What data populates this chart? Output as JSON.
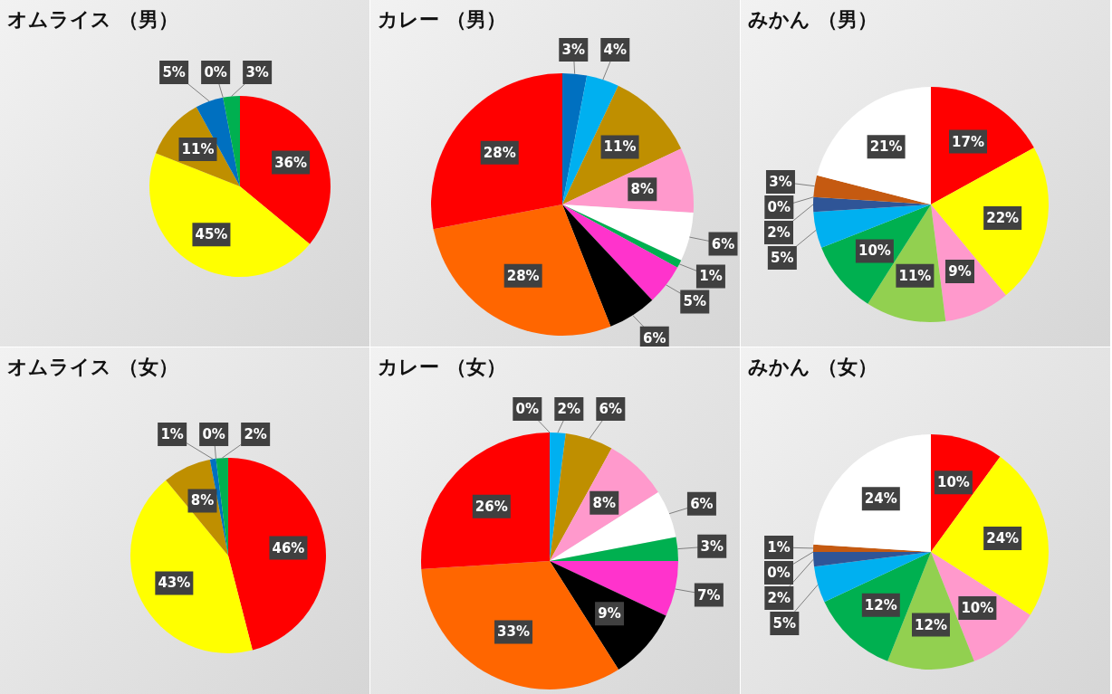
{
  "chart_data": [
    {
      "type": "pie",
      "title": "オムライス （男）",
      "categories": [
        null,
        null,
        null,
        null,
        null,
        null
      ],
      "values": [
        36,
        45,
        11,
        5,
        0,
        3
      ],
      "colors": [
        "#ff0000",
        "#ffff00",
        "#bf8f00",
        "#0070c0",
        "#7030a0",
        "#00b050"
      ],
      "value_labels": [
        "36%",
        "45%",
        "11%",
        "5%",
        "0%",
        "3%"
      ]
    },
    {
      "type": "pie",
      "title": "カレー （男）",
      "categories": [
        null,
        null,
        null,
        null,
        null,
        null,
        null,
        null,
        null,
        null
      ],
      "values": [
        3,
        4,
        11,
        8,
        6,
        1,
        5,
        6,
        28,
        28
      ],
      "colors": [
        "#0070c0",
        "#00b0f0",
        "#bf8f00",
        "#ff99cc",
        "#ffffff",
        "#00b050",
        "#ff33cc",
        "#000000",
        "#ff6600",
        "#ff0000"
      ],
      "value_labels": [
        "3%",
        "4%",
        "11%",
        "8%",
        "6%",
        "1%",
        "5%",
        "6%",
        "28%",
        "28%"
      ]
    },
    {
      "type": "pie",
      "title": "みかん （男）",
      "categories": [
        null,
        null,
        null,
        null,
        null,
        null,
        null,
        null,
        null,
        null
      ],
      "values": [
        17,
        22,
        9,
        11,
        10,
        5,
        2,
        0,
        3,
        21
      ],
      "colors": [
        "#ff0000",
        "#ffff00",
        "#ff99cc",
        "#92d050",
        "#00b050",
        "#00b0f0",
        "#2f5597",
        "#7030a0",
        "#c55a11",
        "#ffffff"
      ],
      "value_labels": [
        "17%",
        "22%",
        "9%",
        "11%",
        "10%",
        "5%",
        "2%",
        "0%",
        "3%",
        "21%"
      ]
    },
    {
      "type": "pie",
      "title": "オムライス （女）",
      "categories": [
        null,
        null,
        null,
        null,
        null,
        null
      ],
      "values": [
        46,
        43,
        8,
        1,
        0,
        2
      ],
      "colors": [
        "#ff0000",
        "#ffff00",
        "#bf8f00",
        "#0070c0",
        "#7030a0",
        "#00b050"
      ],
      "value_labels": [
        "46%",
        "43%",
        "8%",
        "1%",
        "0%",
        "2%"
      ]
    },
    {
      "type": "pie",
      "title": "カレー （女）",
      "categories": [
        null,
        null,
        null,
        null,
        null,
        null,
        null,
        null,
        null,
        null
      ],
      "values": [
        0,
        2,
        6,
        8,
        6,
        3,
        7,
        9,
        33,
        26
      ],
      "colors": [
        "#0070c0",
        "#00b0f0",
        "#bf8f00",
        "#ff99cc",
        "#ffffff",
        "#00b050",
        "#ff33cc",
        "#000000",
        "#ff6600",
        "#ff0000"
      ],
      "value_labels": [
        "0%",
        "2%",
        "6%",
        "8%",
        "6%",
        "3%",
        "7%",
        "9%",
        "33%",
        "26%"
      ]
    },
    {
      "type": "pie",
      "title": "みかん （女）",
      "categories": [
        null,
        null,
        null,
        null,
        null,
        null,
        null,
        null,
        null,
        null
      ],
      "values": [
        10,
        24,
        10,
        12,
        12,
        5,
        2,
        0,
        1,
        24
      ],
      "colors": [
        "#ff0000",
        "#ffff00",
        "#ff99cc",
        "#92d050",
        "#00b050",
        "#00b0f0",
        "#2f5597",
        "#7030a0",
        "#c55a11",
        "#ffffff"
      ],
      "value_labels": [
        "10%",
        "24%",
        "10%",
        "12%",
        "12%",
        "5%",
        "2%",
        "0%",
        "1%",
        "24%"
      ]
    }
  ]
}
